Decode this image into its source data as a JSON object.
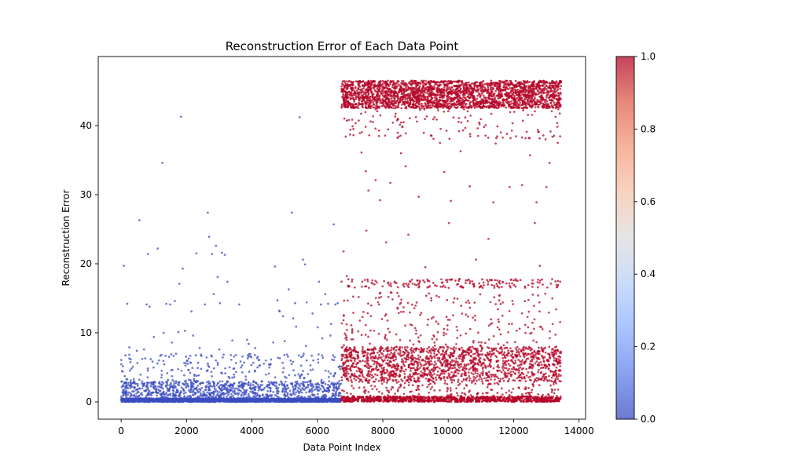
{
  "chart_data": {
    "type": "scatter",
    "title": "Reconstruction Error of Each Data Point",
    "xlabel": "Data Point Index",
    "ylabel": "Reconstruction Error",
    "xlim": [
      -700,
      14200
    ],
    "ylim": [
      -2.5,
      50
    ],
    "x_ticks": [
      0,
      2000,
      4000,
      6000,
      8000,
      10000,
      12000,
      14000
    ],
    "y_ticks": [
      0,
      10,
      20,
      30,
      40
    ],
    "grid": false,
    "colormap": "coolwarm",
    "colorbar": {
      "range": [
        0,
        1
      ],
      "ticks": [
        "0.0",
        "0.2",
        "0.4",
        "0.6",
        "0.8",
        "1.0"
      ]
    },
    "marker_alpha": 0.75,
    "colors": {
      "class_0": "#3b4cc0",
      "class_1": "#b40426"
    },
    "series": [
      {
        "class": 0,
        "x_range": [
          0,
          6720
        ],
        "groups": [
          {
            "y_range": [
              0,
              0.5
            ],
            "count": 2400
          },
          {
            "y_range": [
              0.5,
              3
            ],
            "count": 900
          },
          {
            "y_range": [
              3,
              7
            ],
            "count": 220
          }
        ],
        "points": [
          [
            80,
            19.7
          ],
          [
            190,
            14.2
          ],
          [
            560,
            26.3
          ],
          [
            820,
            21.4
          ],
          [
            780,
            14.1
          ],
          [
            870,
            13.8
          ],
          [
            1120,
            22.2
          ],
          [
            1260,
            34.6
          ],
          [
            1380,
            14.2
          ],
          [
            1500,
            14.1
          ],
          [
            1640,
            14.6
          ],
          [
            1780,
            17.1
          ],
          [
            1830,
            41.3
          ],
          [
            1880,
            19.3
          ],
          [
            1950,
            10.3
          ],
          [
            2150,
            13.1
          ],
          [
            2300,
            21.5
          ],
          [
            2560,
            14.1
          ],
          [
            2650,
            27.4
          ],
          [
            2690,
            23.9
          ],
          [
            2780,
            21.4
          ],
          [
            2830,
            15.6
          ],
          [
            2900,
            22.6
          ],
          [
            2950,
            18.1
          ],
          [
            3020,
            14.3
          ],
          [
            3080,
            21.6
          ],
          [
            3170,
            21.3
          ],
          [
            3250,
            17.4
          ],
          [
            3610,
            14.1
          ],
          [
            4700,
            19.6
          ],
          [
            4780,
            14.7
          ],
          [
            4850,
            13.1
          ],
          [
            5120,
            16.3
          ],
          [
            5220,
            27.4
          ],
          [
            5320,
            14.3
          ],
          [
            5460,
            41.2
          ],
          [
            5560,
            20.6
          ],
          [
            5620,
            19.9
          ],
          [
            5670,
            14.4
          ],
          [
            5850,
            12.8
          ],
          [
            6050,
            17.4
          ],
          [
            6110,
            14.1
          ],
          [
            6240,
            15.6
          ],
          [
            6330,
            14.2
          ],
          [
            6420,
            11.3
          ],
          [
            6500,
            25.7
          ],
          [
            6550,
            14.1
          ],
          [
            6620,
            14.3
          ],
          [
            6010,
            10.8
          ],
          [
            5350,
            10.9
          ],
          [
            5260,
            12.1
          ],
          [
            4950,
            12.4
          ],
          [
            4830,
            13.2
          ],
          [
            3850,
            9.0
          ],
          [
            1000,
            9.4
          ],
          [
            700,
            7.6
          ],
          [
            1300,
            10.0
          ],
          [
            1550,
            8.6
          ],
          [
            1750,
            10.1
          ],
          [
            2400,
            7.8
          ],
          [
            3000,
            7.6
          ],
          [
            3900,
            8.4
          ],
          [
            4100,
            7.8
          ],
          [
            4650,
            8.6
          ],
          [
            5000,
            8.8
          ],
          [
            5650,
            8.1
          ],
          [
            6150,
            9.2
          ],
          [
            6400,
            9.6
          ],
          [
            2200,
            9.6
          ],
          [
            480,
            7.4
          ],
          [
            250,
            7.9
          ],
          [
            3400,
            8.9
          ]
        ]
      },
      {
        "class": 1,
        "x_range": [
          6740,
          13450
        ],
        "groups": [
          {
            "y_range": [
              42.5,
              46.5
            ],
            "count": 2600
          },
          {
            "y_range": [
              38,
              42.5
            ],
            "count": 120
          },
          {
            "y_range": [
              0,
              0.8
            ],
            "count": 1100
          },
          {
            "y_range": [
              3,
              8
            ],
            "count": 1500
          },
          {
            "y_range": [
              0.8,
              3
            ],
            "count": 180
          },
          {
            "y_range": [
              8,
              11
            ],
            "count": 90
          },
          {
            "y_range": [
              11,
              16
            ],
            "count": 130
          },
          {
            "y_range": [
              16.5,
              17.8
            ],
            "count": 170
          }
        ],
        "points": [
          [
            6800,
            21.8
          ],
          [
            6900,
            18.2
          ],
          [
            7100,
            39.5
          ],
          [
            7350,
            36.1
          ],
          [
            7480,
            33.4
          ],
          [
            7560,
            30.6
          ],
          [
            7500,
            24.8
          ],
          [
            7780,
            32.1
          ],
          [
            7920,
            29.2
          ],
          [
            8100,
            23.1
          ],
          [
            8230,
            31.7
          ],
          [
            8560,
            36.0
          ],
          [
            8700,
            34.1
          ],
          [
            8780,
            24.2
          ],
          [
            9100,
            29.7
          ],
          [
            9300,
            19.5
          ],
          [
            9750,
            37.5
          ],
          [
            9880,
            33.3
          ],
          [
            10020,
            25.9
          ],
          [
            10080,
            29.1
          ],
          [
            10380,
            36.3
          ],
          [
            10660,
            31.2
          ],
          [
            10850,
            20.6
          ],
          [
            11230,
            23.6
          ],
          [
            11380,
            28.9
          ],
          [
            11450,
            37.4
          ],
          [
            11880,
            31.1
          ],
          [
            12260,
            31.4
          ],
          [
            12500,
            35.7
          ],
          [
            12650,
            25.9
          ],
          [
            12700,
            28.9
          ],
          [
            12800,
            19.7
          ],
          [
            13000,
            31.1
          ],
          [
            13100,
            34.6
          ],
          [
            13350,
            37.5
          ],
          [
            13360,
            17.5
          ],
          [
            7300,
            38.9
          ],
          [
            7000,
            38.7
          ],
          [
            8450,
            38.2
          ],
          [
            10900,
            39.6
          ],
          [
            9550,
            38.1
          ],
          [
            11800,
            38.8
          ],
          [
            12400,
            39.1
          ]
        ]
      }
    ]
  }
}
